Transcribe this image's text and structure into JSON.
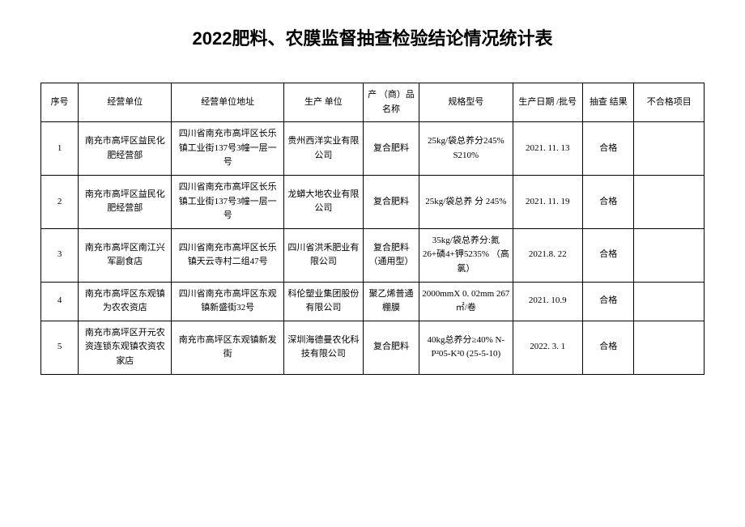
{
  "title": "2022肥料、农膜监督抽查检验结论情况统计表",
  "columns": [
    "序号",
    "经营单位",
    "经营单位地址",
    "生产 单位",
    "产 （商）品名称",
    "规格型号",
    "生产日期 /批号",
    "抽查 结果",
    "不合格项目"
  ],
  "rows": [
    {
      "seq": "1",
      "unit": "南充市高坪区益民化肥经营部",
      "addr": "四川省南充市高坪区长乐镇工业街137号3幢一层一号",
      "producer": "贵州西洋实业有限公司",
      "product": "复合肥料",
      "spec": "25kg/袋总养分245% S210%",
      "date": "2021. 11. 13",
      "result": "合格",
      "fail": ""
    },
    {
      "seq": "2",
      "unit": "南充市高坪区益民化肥经营部",
      "addr": "四川省南充市高坪区长乐镇工业街137号3幢一层一号",
      "producer": "龙蟒大地农业有限公司",
      "product": "复合肥料",
      "spec": "25kg/袋总养 分 245%",
      "date": "2021. 11. 19",
      "result": "合格",
      "fail": ""
    },
    {
      "seq": "3",
      "unit": "南充市高坪区南江兴军副食店",
      "addr": "四川省南充市高坪区长乐镇天云寺村二组47号",
      "producer": "四川省洪禾肥业有限公司",
      "product": "复合肥料（通用型）",
      "spec": "35kg/袋总养分:氮26+磷4+钾5235% （高氯）",
      "date": "2021.8. 22",
      "result": "合格",
      "fail": ""
    },
    {
      "seq": "4",
      "unit": "南充市高坪区东观镇为农农资店",
      "addr": "四川省南充市高坪区东观镇新盛街32号",
      "producer": "科伦塑业集团股份有限公司",
      "product": "聚乙烯普通棚膜",
      "spec": "2000mmX 0. 02mm 267㎡/卷",
      "date": "2021. 10.9",
      "result": "合格",
      "fail": ""
    },
    {
      "seq": "5",
      "unit": "南充市高坪区开元农资连锁东观镇农资农家店",
      "addr": "南充市高坪区东观镇新发街",
      "producer": "深圳海德曼农化科技有限公司",
      "product": "复合肥料",
      "spec": "40kg总养分≥40% N-P²05-K²0 (25-5-10)",
      "date": "2022. 3. 1",
      "result": "合格",
      "fail": ""
    }
  ]
}
